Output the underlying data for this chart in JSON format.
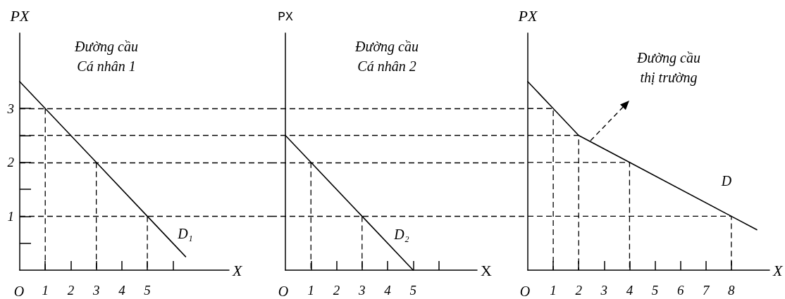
{
  "chart_data": [
    {
      "type": "line",
      "title": "Đường cầu\nCá nhân 1",
      "xlabel": "X",
      "ylabel": "PX",
      "marker": "none",
      "series": [
        {
          "color": "#000000",
          "x": [
            0,
            1,
            3,
            5,
            6.5
          ],
          "values": [
            3.5,
            3,
            2,
            1,
            0.25
          ]
        },
        {
          "color": "#000000",
          "line_style": "dashed",
          "x": [
            1,
            1
          ],
          "values": [
            3,
            0
          ]
        },
        {
          "color": "#000000",
          "line_style": "dashed",
          "x": [
            3,
            3
          ],
          "values": [
            2,
            0
          ]
        },
        {
          "color": "#000000",
          "line_style": "dashed",
          "x": [
            5,
            5
          ],
          "values": [
            1,
            0
          ]
        }
      ],
      "xlim": [
        0,
        8.2
      ],
      "ylim": [
        0,
        4.4
      ],
      "xticks": [
        1,
        2,
        3,
        4,
        5,
        {
          "value": 6,
          "label": null
        }
      ],
      "yticks": [
        {
          "value": 0.5,
          "label": null
        },
        1,
        {
          "value": 1.5,
          "label": null
        },
        2,
        {
          "value": 2.5,
          "label": null
        },
        3
      ],
      "ref_lines": [
        {
          "axis": "y",
          "value": 3,
          "color": "#000000",
          "line_style": "dashed"
        },
        {
          "axis": "y",
          "value": 2.5,
          "color": "#000000",
          "line_style": "dashed"
        },
        {
          "axis": "y",
          "value": 2,
          "color": "#000000",
          "line_style": "dashed"
        },
        {
          "axis": "y",
          "value": 1,
          "color": "#000000",
          "line_style": "dashed"
        }
      ],
      "annotations": [
        "O",
        "D₁"
      ]
    },
    {
      "type": "line",
      "title": "Đường cầu\nCá nhân 2",
      "xlabel": "X",
      "ylabel": "PX",
      "marker": "none",
      "tick_labels": "x",
      "series": [
        {
          "color": "#000000",
          "x": [
            0,
            1,
            3,
            5
          ],
          "values": [
            2.5,
            2,
            1,
            0
          ]
        },
        {
          "color": "#000000",
          "line_style": "dashed",
          "x": [
            1,
            1
          ],
          "values": [
            2,
            0
          ]
        },
        {
          "color": "#000000",
          "line_style": "dashed",
          "x": [
            3,
            3
          ],
          "values": [
            1,
            0
          ]
        }
      ],
      "xlim": [
        0,
        7.5
      ],
      "ylim": [
        0,
        4.4
      ],
      "xticks": [
        1,
        2,
        3,
        4,
        5,
        {
          "value": 6,
          "label": null
        }
      ],
      "ref_lines": [
        {
          "axis": "y",
          "value": 3,
          "color": "#000000",
          "line_style": "dashed"
        },
        {
          "axis": "y",
          "value": 2.5,
          "color": "#000000",
          "line_style": "dashed"
        },
        {
          "axis": "y",
          "value": 2,
          "color": "#000000",
          "line_style": "dashed"
        },
        {
          "axis": "y",
          "value": 1,
          "color": "#000000",
          "line_style": "dashed"
        }
      ],
      "annotations": [
        "O",
        "D₂"
      ]
    },
    {
      "type": "line",
      "title": "Đường cầu\nthị trường",
      "xlabel": "X",
      "ylabel": "PX",
      "marker": "none",
      "tick_labels": "x",
      "series": [
        {
          "color": "#000000",
          "x": [
            0,
            1,
            2,
            4,
            8,
            9
          ],
          "values": [
            3.5,
            3,
            2.5,
            2,
            1,
            0.75
          ]
        },
        {
          "color": "#000000",
          "line_style": "dashed",
          "x": [
            0,
            1,
            1
          ],
          "values": [
            3,
            3,
            0
          ]
        },
        {
          "color": "#000000",
          "line_style": "dashed",
          "x": [
            0,
            2,
            2
          ],
          "values": [
            2.5,
            2.5,
            0
          ]
        },
        {
          "color": "#000000",
          "line_style": "dashed",
          "x": [
            0,
            4,
            4
          ],
          "values": [
            2,
            2,
            0
          ]
        },
        {
          "color": "#000000",
          "line_style": "dashed",
          "x": [
            0,
            8,
            8
          ],
          "values": [
            1,
            1,
            0
          ]
        }
      ],
      "xlim": [
        0,
        9.5
      ],
      "ylim": [
        0,
        4.4
      ],
      "xticks": [
        1,
        2,
        3,
        4,
        5,
        6,
        7,
        8
      ],
      "annotations": [
        "O",
        "D"
      ]
    }
  ]
}
